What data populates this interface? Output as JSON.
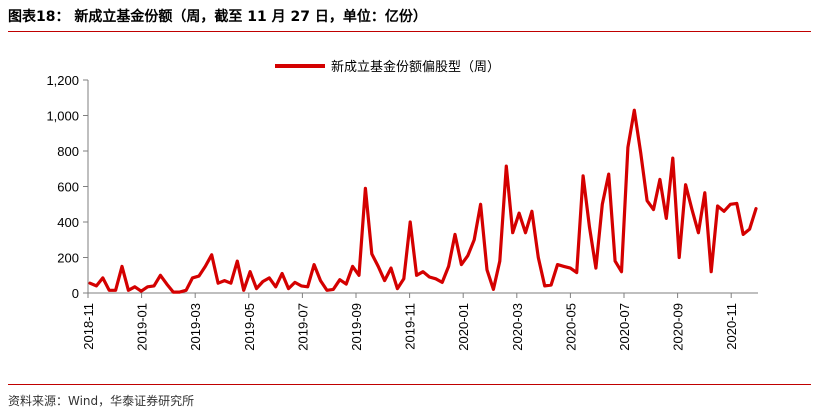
{
  "header": {
    "title": "图表18： 新成立基金份额（周，截至 11 月 27 日，单位：亿份）"
  },
  "footer": {
    "source": "资料来源：Wind，华泰证券研究所"
  },
  "colors": {
    "series": "#d40000",
    "rule": "#c00000",
    "axis": "#7f7f7f"
  },
  "chart_data": {
    "type": "line",
    "title": "",
    "xlabel": "",
    "ylabel": "",
    "ylim": [
      0,
      1200
    ],
    "yticks": [
      "0",
      "200",
      "400",
      "600",
      "800",
      "1,000",
      "1,200"
    ],
    "yticks_values": [
      0,
      200,
      400,
      600,
      800,
      1000,
      1200
    ],
    "xticks": [
      "2018-11",
      "2019-01",
      "2019-03",
      "2019-05",
      "2019-07",
      "2019-09",
      "2019-11",
      "2020-01",
      "2020-03",
      "2020-05",
      "2020-07",
      "2020-09",
      "2020-11"
    ],
    "grid": false,
    "legend": {
      "position": "top-center",
      "entries": [
        "新成立基金份额偏股型（周）"
      ]
    },
    "series": [
      {
        "name": "新成立基金份额偏股型（周）",
        "values": [
          55,
          40,
          85,
          15,
          15,
          150,
          15,
          35,
          10,
          35,
          40,
          100,
          50,
          5,
          5,
          15,
          85,
          95,
          150,
          215,
          55,
          70,
          55,
          180,
          15,
          120,
          25,
          65,
          85,
          35,
          110,
          25,
          60,
          40,
          35,
          160,
          70,
          15,
          20,
          75,
          50,
          150,
          100,
          590,
          220,
          150,
          70,
          140,
          25,
          80,
          400,
          100,
          120,
          90,
          80,
          60,
          150,
          330,
          160,
          210,
          300,
          500,
          130,
          20,
          180,
          715,
          340,
          450,
          340,
          460,
          200,
          40,
          45,
          160,
          150,
          140,
          115,
          660,
          370,
          140,
          500,
          670,
          180,
          120,
          820,
          1030,
          790,
          520,
          470,
          640,
          420,
          760,
          200,
          610,
          470,
          340,
          565,
          120,
          490,
          460,
          500,
          505,
          330,
          360,
          475
        ]
      }
    ]
  }
}
